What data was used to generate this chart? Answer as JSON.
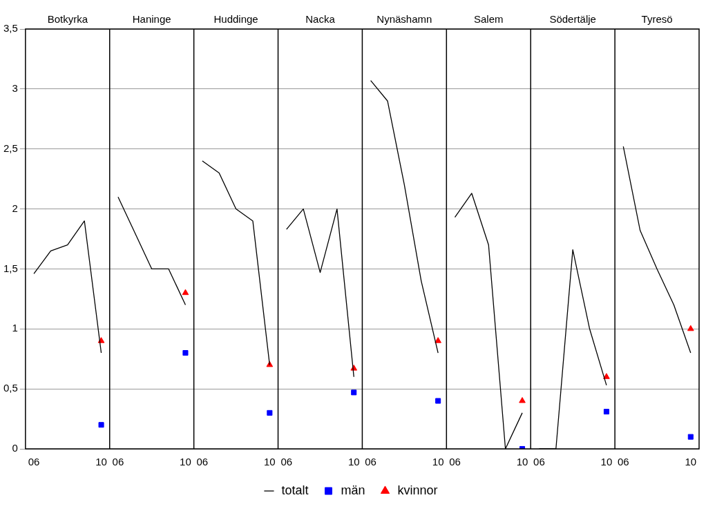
{
  "chart_data": {
    "type": "line",
    "categories": [
      "06",
      null,
      null,
      null,
      "10",
      "06",
      null,
      null,
      null,
      "10",
      "06",
      null,
      null,
      null,
      "10",
      "06",
      null,
      null,
      null,
      "10",
      "06",
      null,
      null,
      null,
      "10",
      "06",
      null,
      null,
      null,
      "10",
      "06",
      null,
      null,
      null,
      "10",
      "06",
      null,
      null,
      null,
      "10"
    ],
    "annotations": [
      "Botkyrka",
      "Haninge",
      "Huddinge",
      "Nacka",
      "Nynäshamn",
      "Salem",
      "Södertälje",
      "Tyresö"
    ],
    "series": [
      {
        "name": "totalt",
        "type": "line",
        "color": "#000000",
        "marker": "none",
        "values": [
          1.46,
          1.65,
          1.7,
          1.9,
          0.8,
          2.1,
          1.8,
          1.5,
          1.5,
          1.2,
          2.4,
          2.3,
          2.0,
          1.9,
          0.7,
          1.83,
          2.0,
          1.47,
          2.0,
          0.6,
          3.07,
          2.9,
          2.2,
          1.4,
          0.8,
          1.93,
          2.13,
          1.7,
          0,
          0.3,
          0,
          0,
          1.66,
          1.0,
          0.53,
          2.52,
          1.82,
          1.5,
          1.2,
          0.8
        ]
      },
      {
        "name": "män",
        "type": "scatter",
        "color": "#0000ff",
        "marker": "square",
        "values": [
          null,
          null,
          null,
          null,
          0.2,
          null,
          null,
          null,
          null,
          0.8,
          null,
          null,
          null,
          null,
          0.3,
          null,
          null,
          null,
          null,
          0.47,
          null,
          null,
          null,
          null,
          0.4,
          null,
          null,
          null,
          null,
          0.0,
          null,
          null,
          null,
          null,
          0.31,
          null,
          null,
          null,
          null,
          0.1
        ]
      },
      {
        "name": "kvinnor",
        "type": "scatter",
        "color": "#ff0000",
        "marker": "triangle",
        "values": [
          null,
          null,
          null,
          null,
          0.9,
          null,
          null,
          null,
          null,
          1.3,
          null,
          null,
          null,
          null,
          0.7,
          null,
          null,
          null,
          null,
          0.67,
          null,
          null,
          null,
          null,
          0.9,
          null,
          null,
          null,
          null,
          0.4,
          null,
          null,
          null,
          null,
          0.6,
          null,
          null,
          null,
          null,
          1.0
        ]
      }
    ],
    "ylim": [
      0,
      3.5
    ],
    "yticks": [
      0,
      {
        "value": 0.5,
        "label": "0,5"
      },
      1,
      {
        "value": 1.5,
        "label": "1,5"
      },
      2,
      {
        "value": 2.5,
        "label": "2,5"
      },
      3,
      {
        "value": 3.5,
        "label": "3,5"
      }
    ],
    "grid": "y",
    "legend": "bottom"
  }
}
